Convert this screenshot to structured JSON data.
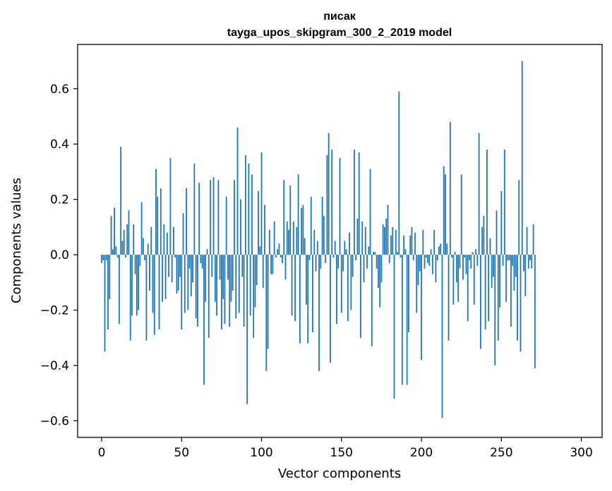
{
  "chart_data": {
    "type": "bar",
    "title_line1": "писак",
    "title_line2": "tayga_upos_skipgram_300_2_2019 model",
    "xlabel": "Vector components",
    "ylabel": "Components values",
    "xlim": [
      -15,
      313
    ],
    "ylim": [
      -0.66,
      0.76
    ],
    "xticks": [
      0,
      50,
      100,
      150,
      200,
      250,
      300
    ],
    "yticks": [
      -0.6,
      -0.4,
      -0.2,
      0.0,
      0.2,
      0.4,
      0.6
    ],
    "ytick_labels": [
      "−0.6",
      "−0.4",
      "−0.2",
      "0.0",
      "0.2",
      "0.4",
      "0.6"
    ],
    "bar_color": "#1f77b4",
    "grid": false,
    "values": [
      -0.03,
      -0.02,
      -0.35,
      -0.02,
      -0.27,
      -0.16,
      0.14,
      0.02,
      0.17,
      0.03,
      -0.01,
      -0.25,
      0.39,
      0.05,
      0.09,
      -0.01,
      0.11,
      0.16,
      -0.31,
      -0.22,
      0.11,
      -0.07,
      -0.22,
      -0.2,
      -0.04,
      0.19,
      0.06,
      -0.02,
      -0.31,
      0.04,
      -0.13,
      0.1,
      -0.21,
      -0.29,
      0.31,
      0.21,
      -0.27,
      0.24,
      -0.17,
      0.11,
      -0.16,
      0.08,
      -0.08,
      0.35,
      -0.1,
      0.1,
      -0.01,
      -0.14,
      -0.13,
      -0.08,
      -0.27,
      0.15,
      -0.21,
      0.24,
      -0.2,
      -0.05,
      -0.15,
      -0.1,
      0.33,
      -0.23,
      -0.26,
      0.26,
      -0.03,
      -0.05,
      -0.47,
      -0.17,
      0.02,
      -0.3,
      0.27,
      -0.08,
      0.28,
      -0.17,
      -0.22,
      0.27,
      -0.09,
      -0.27,
      -0.16,
      -0.25,
      0.21,
      -0.09,
      -0.26,
      -0.17,
      -0.13,
      0.27,
      -0.23,
      0.46,
      -0.21,
      0.2,
      -0.08,
      -0.26,
      0.36,
      -0.54,
      0.33,
      -0.22,
      0.29,
      -0.3,
      -0.19,
      -0.11,
      0.23,
      0.03,
      0.37,
      -0.12,
      0.18,
      -0.42,
      -0.34,
      0.09,
      -0.07,
      -0.07,
      0.12,
      -0.01,
      0.02,
      0.04,
      -0.01,
      -0.03,
      0.27,
      -0.09,
      0.12,
      0.09,
      0.25,
      -0.22,
      0.12,
      -0.24,
      0.1,
      0.29,
      -0.32,
      0.17,
      0.18,
      0.06,
      -0.18,
      -0.32,
      -0.02,
      0.21,
      -0.28,
      0.09,
      -0.06,
      0.05,
      -0.42,
      -0.05,
      0.21,
      0.14,
      -0.03,
      0.36,
      0.44,
      -0.39,
      0.38,
      -0.01,
      0.05,
      -0.25,
      -0.05,
      0.35,
      -0.21,
      -0.06,
      0.05,
      0.02,
      -0.24,
      0.08,
      -0.2,
      -0.08,
      0.38,
      -0.02,
      0.13,
      0.37,
      -0.3,
      0.12,
      -0.1,
      0.1,
      -0.05,
      0.03,
      0.31,
      -0.33,
      0.01,
      0.01,
      -0.05,
      -0.12,
      -0.19,
      -0.1,
      0.11,
      0.1,
      0.13,
      0.18,
      -0.03,
      0.07,
      0.1,
      -0.52,
      0.09,
      0.01,
      0.59,
      -0.01,
      -0.47,
      0.07,
      0.02,
      -0.47,
      -0.28,
      0.07,
      0.1,
      -0.02,
      0.08,
      -0.21,
      -0.11,
      -0.06,
      -0.38,
      0.09,
      -0.05,
      -0.01,
      -0.03,
      -0.04,
      0.02,
      -0.07,
      0.09,
      -0.1,
      -0.02,
      0.03,
      0.04,
      -0.59,
      0.32,
      0.29,
      0.04,
      -0.31,
      0.48,
      -0.01,
      -0.18,
      0.01,
      -0.1,
      -0.17,
      -0.05,
      0.29,
      -0.09,
      -0.01,
      -0.07,
      -0.24,
      -0.02,
      -0.05,
      0.01,
      -0.18,
      0.02,
      -0.04,
      0.44,
      -0.34,
      0.1,
      0.14,
      -0.27,
      0.38,
      -0.24,
      0.06,
      -0.12,
      -0.08,
      -0.4,
      0.16,
      -0.31,
      -0.19,
      0.23,
      -0.04,
      0.38,
      -0.17,
      -0.02,
      -0.02,
      -0.26,
      -0.04,
      -0.13,
      -0.08,
      -0.31,
      0.27,
      -0.35,
      0.7,
      -0.06,
      -0.15,
      0.1,
      -0.05,
      -0.02,
      -0.05,
      0.11,
      -0.41
    ]
  }
}
